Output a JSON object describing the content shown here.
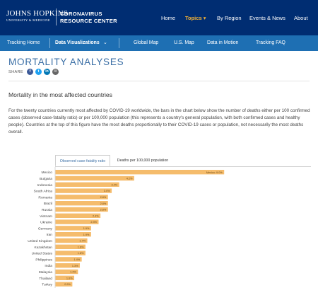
{
  "header": {
    "logo_line1": "JOHNS HOPKINS",
    "logo_line2": "UNIVERSITY & MEDICINE",
    "center_line1": "CORONAVIRUS",
    "center_line2": "RESOURCE CENTER",
    "nav": [
      {
        "label": "Home",
        "active": false
      },
      {
        "label": "Topics ▾",
        "active": true
      },
      {
        "label": "By Region",
        "active": false
      },
      {
        "label": "Events & News",
        "active": false
      },
      {
        "label": "About",
        "active": false
      }
    ]
  },
  "subnav": {
    "tracking_home": "Tracking Home",
    "data_viz": "Data Visualizations",
    "global_map": "Global Map",
    "us_map": "U.S. Map",
    "data_in_motion": "Data in Motion",
    "tracking_faq": "Tracking FAQ"
  },
  "page": {
    "title": "MORTALITY ANALYSES",
    "share_label": "SHARE",
    "share_icons": [
      {
        "name": "facebook-icon",
        "glyph": "f",
        "color": "#3b5998"
      },
      {
        "name": "twitter-icon",
        "glyph": "t",
        "color": "#1da1f2"
      },
      {
        "name": "linkedin-icon",
        "glyph": "in",
        "color": "#0077b5"
      },
      {
        "name": "email-icon",
        "glyph": "✉",
        "color": "#666666"
      }
    ],
    "section_title": "Mortality in the most affected countries",
    "intro": "For the twenty countries currently most affected by COVID-19 worldwide, the bars in the chart below show the number of deaths either per 100 confirmed cases (observed case-fatality ratio) or per 100,000 population (this represents a country's general population, with both confirmed cases and healthy people). Countries at the top of this figure have the most deaths proportionally to their COVID-19 cases or population, not necessarily the most deaths overall."
  },
  "tabs": {
    "active": "Observed case-fatality ratio",
    "inactive": "Deaths per 100,000 population"
  },
  "chart_data": {
    "type": "bar",
    "orientation": "horizontal",
    "bar_color": "#f5bc6c",
    "categories": [
      "Mexico",
      "Bulgaria",
      "Indonesia",
      "South Africa",
      "Romania",
      "Brazil",
      "Russia",
      "Vietnam",
      "Ukraine",
      "Germany",
      "Iran",
      "United Kingdom",
      "Kazakhstan",
      "United States",
      "Philippines",
      "India",
      "Malaysia",
      "Thailand",
      "Turkey"
    ],
    "values": [
      9.0,
      4.2,
      3.4,
      3.0,
      2.8,
      2.8,
      2.8,
      2.4,
      2.3,
      1.9,
      1.9,
      1.7,
      1.6,
      1.6,
      1.4,
      1.3,
      1.2,
      1.0,
      0.9
    ],
    "value_labels": [
      "Mexico: 9.0%",
      "4.2%",
      "3.4%",
      "3.0%",
      "2.8%",
      "2.8%",
      "2.8%",
      "2.4%",
      "2.3%",
      "1.9%",
      "1.9%",
      "1.7%",
      "1.6%",
      "1.6%",
      "1.4%",
      "1.3%",
      "1.2%",
      "1.0%",
      "0.9%"
    ],
    "xlim": [
      0,
      9.2
    ]
  }
}
